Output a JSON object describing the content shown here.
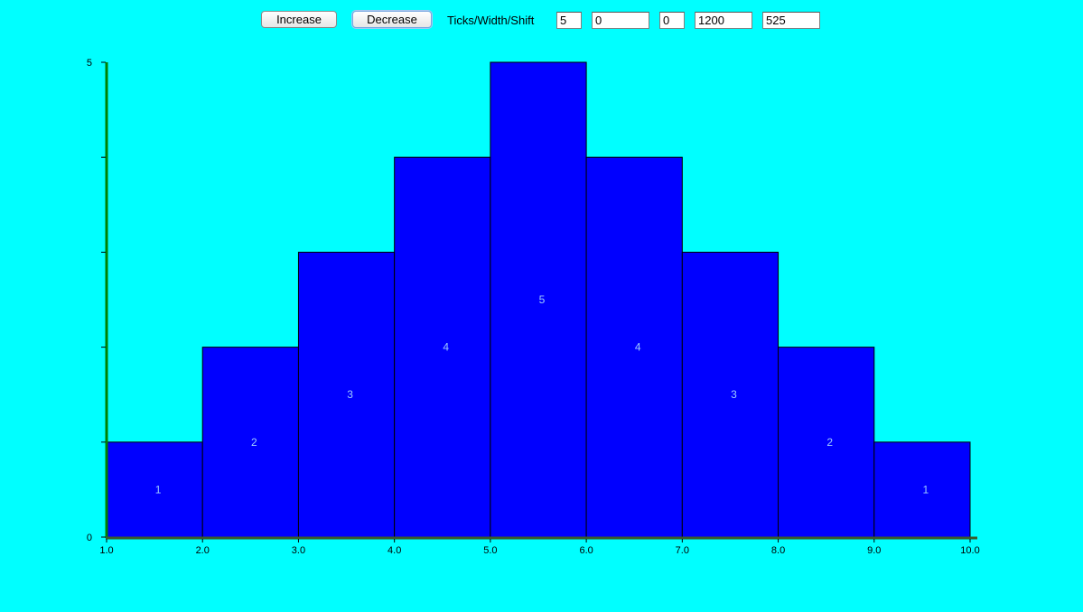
{
  "toolbar": {
    "increase_label": "Increase",
    "decrease_label": "Decrease",
    "params_label": "Ticks/Width/Shift",
    "ticks_value": "5",
    "width_value": "0",
    "shift_value": "0",
    "field4_value": "1200",
    "field5_value": "525"
  },
  "colors": {
    "background": "#00ffff",
    "bar_fill": "#0000ff",
    "bar_stroke": "#000000",
    "bar_label": "#9ecbff",
    "axis_y": "#008000",
    "axis_x": "#3a5a2a"
  },
  "chart_data": {
    "type": "bar",
    "title": "",
    "xlabel": "",
    "ylabel": "",
    "bins": [
      {
        "x0": 1.0,
        "x1": 2.0,
        "value": 1
      },
      {
        "x0": 2.0,
        "x1": 3.0,
        "value": 2
      },
      {
        "x0": 3.0,
        "x1": 4.0,
        "value": 3
      },
      {
        "x0": 4.0,
        "x1": 5.0,
        "value": 4
      },
      {
        "x0": 5.0,
        "x1": 6.0,
        "value": 5
      },
      {
        "x0": 6.0,
        "x1": 7.0,
        "value": 4
      },
      {
        "x0": 7.0,
        "x1": 8.0,
        "value": 3
      },
      {
        "x0": 8.0,
        "x1": 9.0,
        "value": 2
      },
      {
        "x0": 9.0,
        "x1": 10.0,
        "value": 1
      }
    ],
    "bar_labels": [
      "1",
      "2",
      "3",
      "4",
      "5",
      "4",
      "3",
      "2",
      "1"
    ],
    "x_ticks": [
      "1.0",
      "2.0",
      "3.0",
      "4.0",
      "5.0",
      "6.0",
      "7.0",
      "8.0",
      "9.0",
      "10.0"
    ],
    "x_tick_values": [
      1,
      2,
      3,
      4,
      5,
      6,
      7,
      8,
      9,
      10
    ],
    "y_tick_labels": [
      {
        "value": 0,
        "label": "0"
      },
      {
        "value": 5,
        "label": "5"
      }
    ],
    "y_minor_ticks": [
      1,
      2,
      3,
      4
    ],
    "xlim": [
      1.0,
      10.0
    ],
    "ylim": [
      0,
      5
    ],
    "grid": false,
    "legend": "none"
  }
}
